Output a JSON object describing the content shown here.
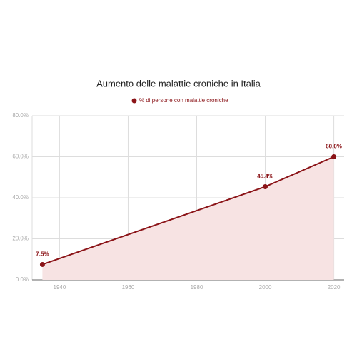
{
  "chart_data": {
    "type": "line",
    "title": "Aumento delle malattie croniche in Italia",
    "x": [
      1935,
      2000,
      2020
    ],
    "series": [
      {
        "name": "% di persone con malattie croniche",
        "color": "#8b1418",
        "area_color": "#f7e3e3",
        "values": [
          7.5,
          45.4,
          60.0
        ],
        "value_labels": [
          "7.5%",
          "45.4%",
          "60.0%"
        ]
      }
    ],
    "xlim": [
      1932,
      2023
    ],
    "xticks": [
      1940,
      1960,
      1980,
      2000,
      2020
    ],
    "ylim": [
      0,
      80
    ],
    "yticks": [
      {
        "value": 0,
        "label": "0.0%"
      },
      {
        "value": 20,
        "label": "20.0%"
      },
      {
        "value": 40,
        "label": "40.0%"
      },
      {
        "value": 60,
        "label": "60.0%"
      },
      {
        "value": 80,
        "label": "80.0%"
      }
    ],
    "grid": true
  }
}
